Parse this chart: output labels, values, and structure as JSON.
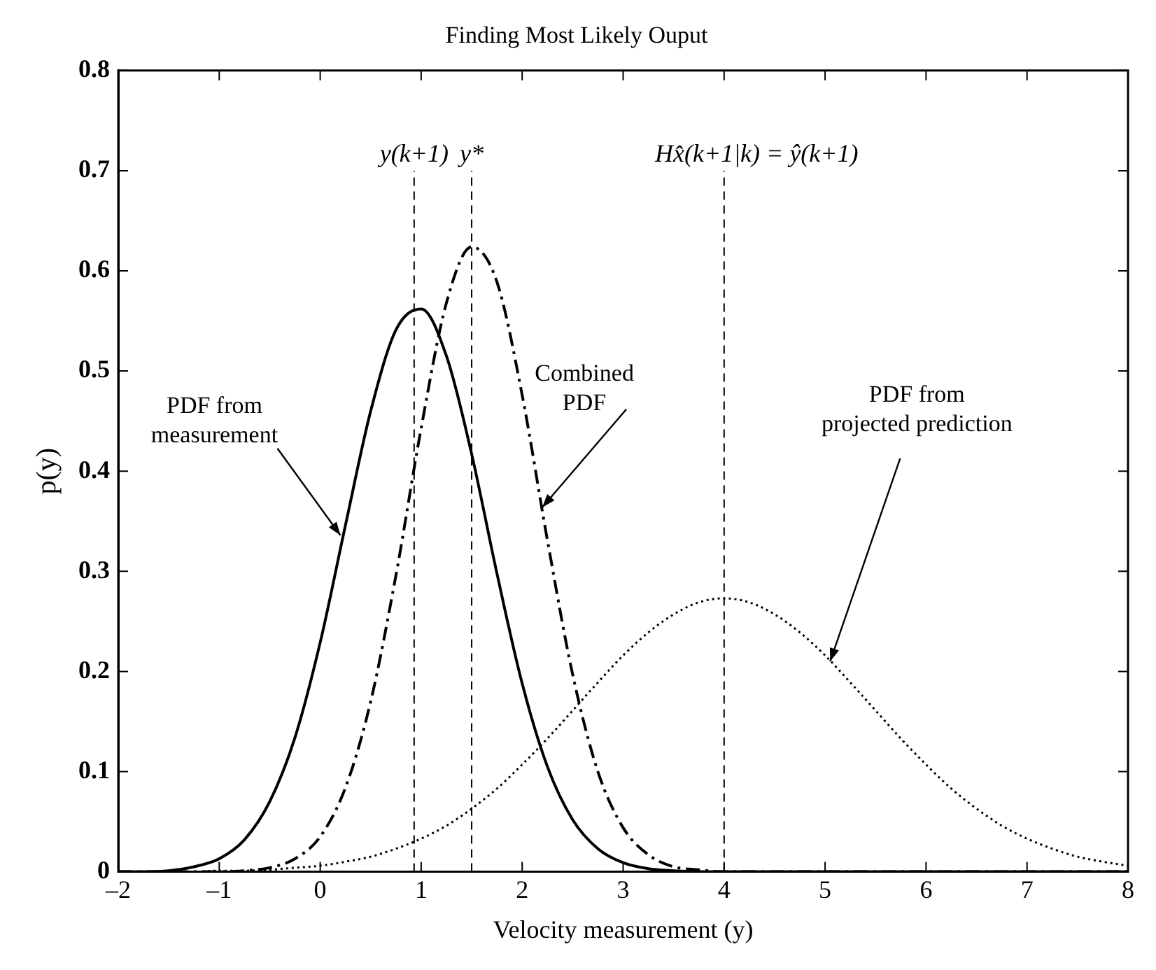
{
  "chart_data": {
    "type": "line",
    "title": "Finding Most Likely Ouput",
    "xlabel": "Velocity measurement (y)",
    "ylabel": "p(y)",
    "x": [
      -2,
      -1.75,
      -1.5,
      -1.25,
      -1,
      -0.75,
      -0.5,
      -0.25,
      0,
      0.25,
      0.5,
      0.75,
      1,
      1.25,
      1.5,
      1.75,
      2,
      2.25,
      2.5,
      2.75,
      3,
      3.25,
      3.5,
      3.75,
      4,
      4.25,
      4.5,
      4.75,
      5,
      5.25,
      5.5,
      5.75,
      6,
      6.25,
      6.5,
      6.75,
      7,
      7.25,
      7.5,
      7.75,
      8
    ],
    "series": [
      {
        "color": "#000000",
        "line_style": "solid",
        "values": [
          0,
          0,
          0.001,
          0.005,
          0.013,
          0.032,
          0.07,
          0.134,
          0.229,
          0.346,
          0.46,
          0.541,
          0.562,
          0.515,
          0.417,
          0.298,
          0.188,
          0.105,
          0.052,
          0.023,
          0.009,
          0.003,
          0.001,
          0,
          0,
          0,
          0,
          0,
          0,
          0,
          0,
          0,
          0,
          0,
          0,
          0,
          0,
          0,
          0,
          0,
          0
        ]
      },
      {
        "color": "#000000",
        "line_style": "dashed",
        "values": [
          0,
          0,
          0,
          0,
          0,
          0.001,
          0.004,
          0.013,
          0.035,
          0.084,
          0.17,
          0.296,
          0.443,
          0.568,
          0.624,
          0.589,
          0.476,
          0.331,
          0.197,
          0.1,
          0.044,
          0.017,
          0.005,
          0.002,
          0,
          0,
          0,
          0,
          0,
          0,
          0,
          0,
          0,
          0,
          0,
          0,
          0,
          0,
          0,
          0,
          0
        ]
      },
      {
        "color": "#000000",
        "line_style": "dotted",
        "values": [
          0,
          0,
          0,
          0,
          0.001,
          0.001,
          0.002,
          0.004,
          0.006,
          0.01,
          0.015,
          0.023,
          0.033,
          0.046,
          0.063,
          0.083,
          0.107,
          0.133,
          0.161,
          0.189,
          0.216,
          0.239,
          0.257,
          0.269,
          0.273,
          0.269,
          0.257,
          0.239,
          0.216,
          0.189,
          0.161,
          0.133,
          0.107,
          0.083,
          0.063,
          0.046,
          0.033,
          0.023,
          0.015,
          0.01,
          0.006
        ]
      }
    ],
    "xlim": [
      -2,
      8
    ],
    "xticks": [
      {
        "value": -2,
        "label": "–2"
      },
      {
        "value": -1,
        "label": "–1"
      },
      0,
      1,
      2,
      3,
      4,
      5,
      6,
      7,
      8
    ],
    "ylim": [
      0,
      0.8
    ],
    "yticks": [
      0,
      0.1,
      0.2,
      0.3,
      0.4,
      0.5,
      0.6,
      0.7,
      0.8
    ],
    "ref_lines": [
      {
        "axis": "x",
        "value": 0.93,
        "label": "y(k+1)",
        "line_style": "dashed",
        "color": "#000000"
      },
      {
        "axis": "x",
        "value": 1.5,
        "label": "y*",
        "line_style": "dashed",
        "color": "#000000"
      },
      {
        "axis": "x",
        "value": 4,
        "label": "Hx̂(k+1|k) = ŷ(k+1)",
        "line_style": "dashed",
        "color": "#000000"
      }
    ],
    "annotations": [
      {
        "text": "PDF from\nmeasurement",
        "x": 0.2,
        "y": 0.336
      },
      {
        "text": "Combined\nPDF",
        "x": 2.2,
        "y": 0.364
      },
      {
        "text": "PDF from\nprojected prediction",
        "x": 5.05,
        "y": 0.21
      }
    ]
  }
}
